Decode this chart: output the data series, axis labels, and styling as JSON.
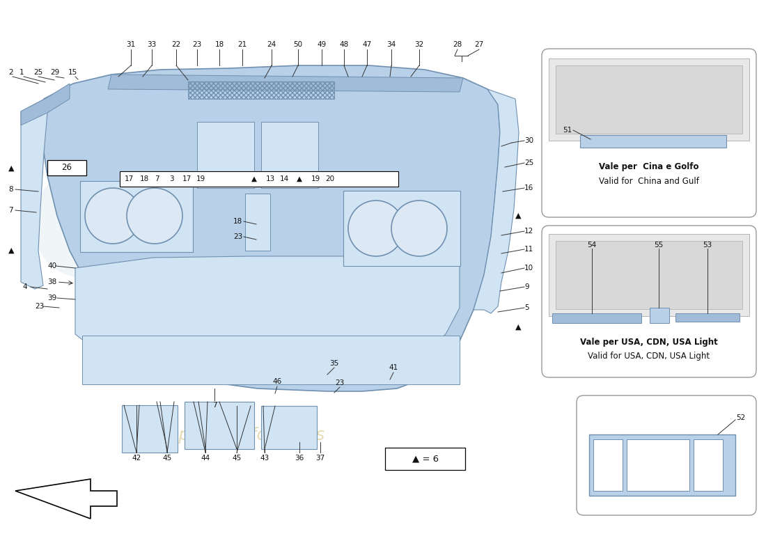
{
  "bg_color": "#ffffff",
  "mc": "#b8d0e8",
  "mc_dark": "#7090b0",
  "mc_light": "#d0e4f4",
  "mc_mid": "#a0bcd8",
  "line_color": "#333333",
  "wm_color": "#d4c88a",
  "legend_text": "▲ = 6",
  "p1_title1": "Vale per  Cina e Golfo",
  "p1_title2": "Valid for  China and Gulf",
  "p2_title1": "Vale per USA, CDN, USA Light",
  "p2_title2": "Valid for USA, CDN, USA Light"
}
